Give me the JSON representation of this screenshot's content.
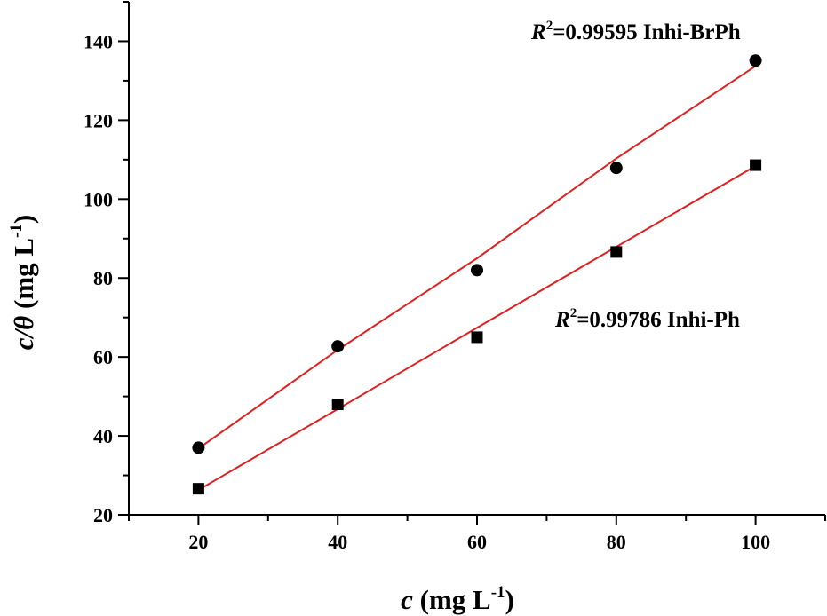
{
  "chart_data": {
    "type": "scatter",
    "x": [
      20,
      40,
      60,
      80,
      100
    ],
    "xlim": [
      10,
      110
    ],
    "ylim": [
      20,
      150
    ],
    "xticks": [
      "20",
      "40",
      "60",
      "80",
      "100"
    ],
    "yticks": [
      "20",
      "40",
      "60",
      "80",
      "100",
      "120",
      "140"
    ],
    "xlabel": {
      "var": "c",
      "unit_pre": " (mg L",
      "sup": "-1",
      "unit_post": ")"
    },
    "ylabel": {
      "var": "c/θ",
      "unit_pre": " (mg L",
      "sup": "-1",
      "unit_post": ")"
    },
    "series": [
      {
        "marker": "circle",
        "values": [
          37.0,
          62.7,
          82.0,
          107.9,
          135.1
        ],
        "fit": [
          36.8,
          61.8,
          85.0,
          110.3,
          133.7
        ],
        "annotation": {
          "r": "R",
          "sup": "2",
          "rest": "=0.99595  Inhi-BrPh"
        },
        "color": "#000000",
        "fit_color": "#e02020"
      },
      {
        "marker": "square",
        "values": [
          26.6,
          48.0,
          65.0,
          86.6,
          108.6
        ],
        "fit": [
          26.3,
          46.8,
          67.4,
          87.9,
          108.4
        ],
        "annotation": {
          "r": "R",
          "sup": "2",
          "rest": "=0.99786  Inhi-Ph"
        },
        "color": "#000000",
        "fit_color": "#e02020"
      }
    ]
  }
}
